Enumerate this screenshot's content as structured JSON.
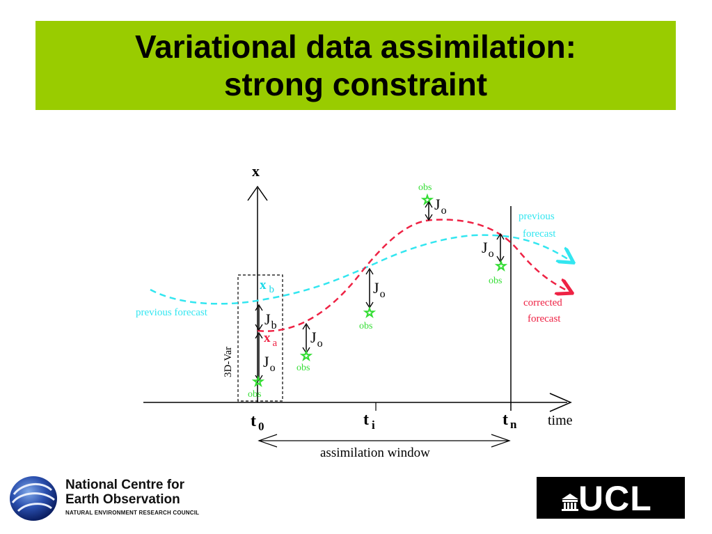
{
  "title": {
    "line1": "Variational data assimilation:",
    "line2": "strong constraint"
  },
  "diagram": {
    "axis_x_label": "x",
    "axis_time_label": "time",
    "t0_label": "t",
    "t0_sub": "0",
    "ti_label": "t",
    "ti_sub": "i",
    "tn_label": "t",
    "tn_sub": "n",
    "window_label": "assimilation window",
    "threedvar_label": "3D-Var",
    "xb_label": "x",
    "xb_sub": "b",
    "xa_label": "x",
    "xa_sub": "a",
    "jb_label": "J",
    "jb_sub": "b",
    "jo_label": "J",
    "jo_sub": "o",
    "obs_label": "obs",
    "previous_forecast_left": "previous forecast",
    "previous_forecast_right_1": "previous",
    "previous_forecast_right_2": "forecast",
    "corrected_forecast_1": "corrected",
    "corrected_forecast_2": "forecast",
    "colors": {
      "previous_forecast": "#33e6f0",
      "corrected_forecast": "#ee2244",
      "obs": "#33dd33",
      "subscript_blue": "#1ad8e8"
    }
  },
  "footer": {
    "nceo_line1": "National Centre for",
    "nceo_line2": "Earth Observation",
    "nceo_line3": "NATURAL ENVIRONMENT RESEARCH COUNCIL",
    "ucl_text": "UCL"
  }
}
